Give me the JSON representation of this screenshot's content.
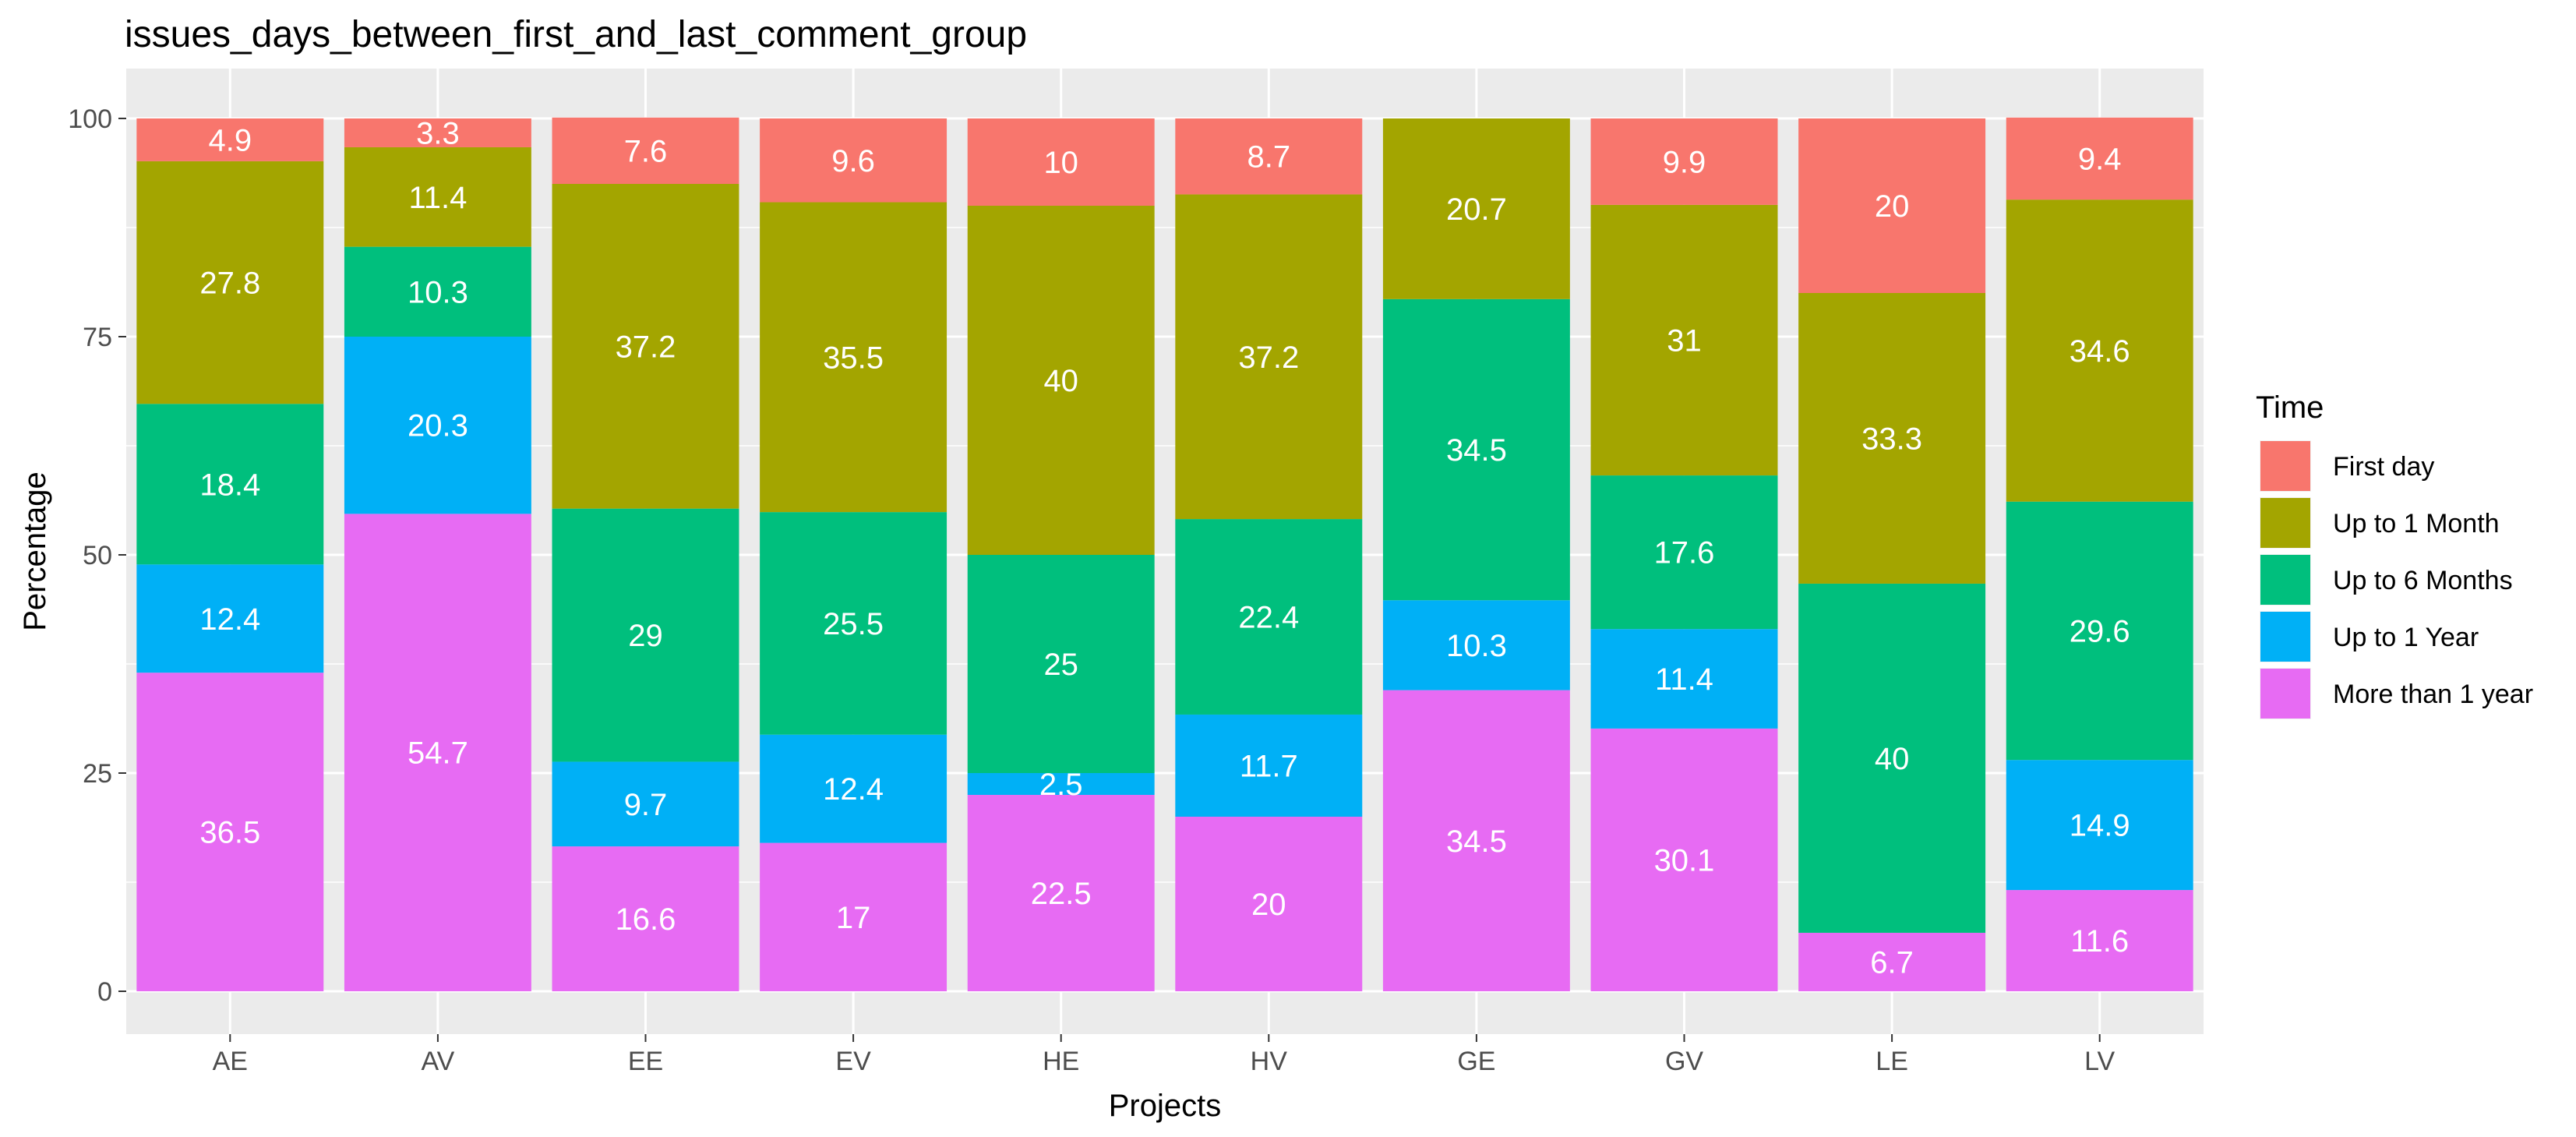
{
  "chart_data": {
    "type": "bar",
    "stacked": true,
    "title": "issues_days_between_first_and_last_comment_group",
    "xlabel": "Projects",
    "ylabel": "Percentage",
    "ylim": [
      0,
      100
    ],
    "yticks": [
      "0",
      "25",
      "50",
      "75",
      "100"
    ],
    "grid": true,
    "legend_position": "right",
    "legend_title": "Time",
    "categories": [
      "AE",
      "AV",
      "EE",
      "EV",
      "HE",
      "HV",
      "GE",
      "GV",
      "LE",
      "LV"
    ],
    "series": [
      {
        "name": "More than 1 year",
        "color": "#e76bf3",
        "values": [
          36.5,
          54.7,
          16.6,
          17,
          22.5,
          20,
          34.5,
          30.1,
          6.7,
          11.6
        ]
      },
      {
        "name": "Up to 1 Year",
        "color": "#00b0f6",
        "values": [
          12.4,
          20.3,
          9.7,
          12.4,
          2.5,
          11.7,
          10.3,
          11.4,
          0,
          14.9
        ]
      },
      {
        "name": "Up to 6 Months",
        "color": "#00bf7d",
        "values": [
          18.4,
          10.3,
          29,
          25.5,
          25,
          22.4,
          34.5,
          17.6,
          40,
          29.6
        ]
      },
      {
        "name": "Up to 1 Month",
        "color": "#a3a500",
        "values": [
          27.8,
          11.4,
          37.2,
          35.5,
          40,
          37.2,
          20.7,
          31,
          33.3,
          34.6
        ]
      },
      {
        "name": "First day",
        "color": "#f8766d",
        "values": [
          4.9,
          3.3,
          7.6,
          9.6,
          10,
          8.7,
          0,
          9.9,
          20,
          9.4
        ]
      }
    ],
    "legend_order": [
      "First day",
      "Up to 1 Month",
      "Up to 6 Months",
      "Up to 1 Year",
      "More than 1 year"
    ]
  }
}
